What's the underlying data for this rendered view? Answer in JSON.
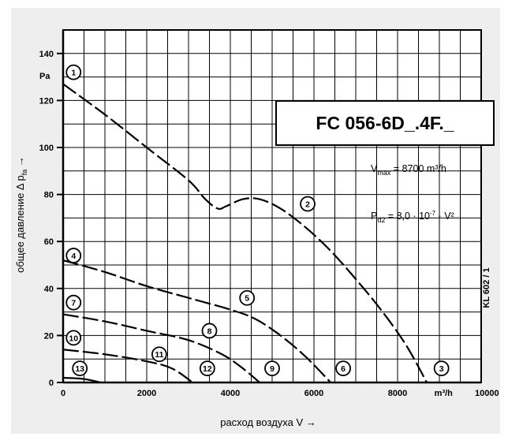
{
  "chart_data": {
    "type": "line",
    "title": "FC 056-6D_.4F._",
    "xlabel": "расход воздуха V →",
    "ylabel_main": "общее давление Δ p",
    "ylabel_sub": "fa",
    "ylabel_arrow": "→",
    "y_unit": "Pa",
    "x_unit": "m³/h",
    "xlim": [
      0,
      10000
    ],
    "ylim": [
      0,
      150
    ],
    "x_ticks": [
      0,
      2000,
      4000,
      6000,
      8000,
      10000
    ],
    "x_tick_labels": [
      "0",
      "2000",
      "4000",
      "6000",
      "8000",
      "m³/h",
      "10000"
    ],
    "y_ticks": [
      0,
      20,
      40,
      60,
      80,
      100,
      120,
      140
    ],
    "y_tick_labels": [
      "0",
      "20",
      "40",
      "60",
      "80",
      "100",
      "120",
      "140"
    ],
    "grid": true,
    "annotations": {
      "vmax_prefix": "V",
      "vmax_sub": "max",
      "vmax_value": " = 8700 m³/h",
      "pd_prefix": "P",
      "pd_sub": "d2",
      "pd_value": " = 8,0 · 10",
      "pd_exp": "-7",
      "pd_tail": " · V²",
      "side_code": "KL 602 / 1"
    },
    "series": [
      {
        "id": "high",
        "style": "dash",
        "x": [
          0,
          1000,
          2000,
          3000,
          3400,
          3700,
          3900,
          4300,
          4700,
          5200,
          5800,
          6400,
          7000,
          7600,
          8200,
          8700
        ],
        "y": [
          127,
          114,
          100,
          86,
          78,
          74,
          75,
          78,
          78,
          74,
          66,
          56,
          44,
          31,
          16,
          0
        ]
      },
      {
        "id": "mid",
        "style": "dash",
        "x": [
          0,
          1000,
          2000,
          3000,
          4000,
          4600,
          5200,
          5800,
          6400
        ],
        "y": [
          52,
          47,
          41,
          36,
          31,
          27,
          20,
          11,
          0
        ]
      },
      {
        "id": "low",
        "style": "dash",
        "x": [
          0,
          1000,
          2000,
          3000,
          3800,
          4300,
          4700
        ],
        "y": [
          29,
          26,
          22,
          18,
          12,
          6,
          0
        ]
      },
      {
        "id": "min",
        "style": "dash",
        "x": [
          0,
          1000,
          2000,
          2600,
          3100
        ],
        "y": [
          14,
          12,
          9,
          6,
          0
        ]
      },
      {
        "id": "start",
        "style": "solid",
        "x": [
          0,
          500,
          900
        ],
        "y": [
          2,
          1.5,
          0
        ]
      }
    ],
    "markers": [
      {
        "label": "1",
        "x": 250,
        "y": 132
      },
      {
        "label": "2",
        "x": 5850,
        "y": 76
      },
      {
        "label": "3",
        "x": 9050,
        "y": 6
      },
      {
        "label": "4",
        "x": 250,
        "y": 54
      },
      {
        "label": "5",
        "x": 4400,
        "y": 36
      },
      {
        "label": "6",
        "x": 6700,
        "y": 6
      },
      {
        "label": "7",
        "x": 250,
        "y": 34
      },
      {
        "label": "8",
        "x": 3500,
        "y": 22
      },
      {
        "label": "9",
        "x": 5000,
        "y": 6
      },
      {
        "label": "10",
        "x": 250,
        "y": 19
      },
      {
        "label": "11",
        "x": 2300,
        "y": 12
      },
      {
        "label": "12",
        "x": 3450,
        "y": 6
      },
      {
        "label": "13",
        "x": 400,
        "y": 6
      }
    ]
  }
}
